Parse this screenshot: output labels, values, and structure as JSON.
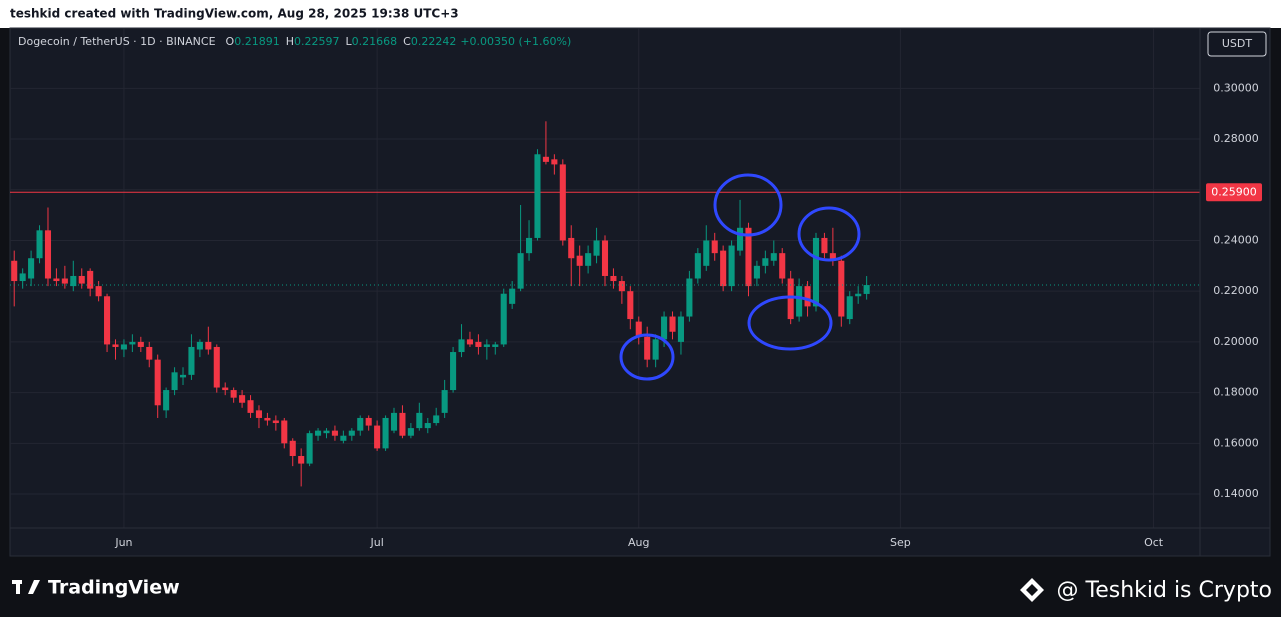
{
  "chart_data": {
    "type": "candlestick",
    "author_line": "teshkid created with TradingView.com, Aug 28, 2025 19:38 UTC+3",
    "title": "Dogecoin / TetherUS · 1D · BINANCE",
    "legend_values": [
      {
        "label": "O",
        "value": 0.21891
      },
      {
        "label": "H",
        "value": 0.22597
      },
      {
        "label": "L",
        "value": 0.21668
      },
      {
        "label": "C",
        "value": 0.22242
      }
    ],
    "change": "+0.00350 (+1.60%)",
    "currency": "USDT",
    "watermark": "TradingView",
    "credit": "@ Teshkid is Crypto",
    "up_color": "#089981",
    "down_color": "#f23645",
    "grid": true,
    "ylim": [
      0.1266,
      0.3238
    ],
    "yticks": [
      {
        "value": 0.14,
        "label": "0.14000"
      },
      {
        "value": 0.16,
        "label": "0.16000"
      },
      {
        "value": 0.18,
        "label": "0.18000"
      },
      {
        "value": 0.2,
        "label": "0.20000"
      },
      {
        "value": 0.22,
        "label": "0.22000"
      },
      {
        "value": 0.24,
        "label": "0.24000"
      },
      {
        "value": 0.26,
        "label": "0.26000"
      },
      {
        "value": 0.28,
        "label": "0.28000"
      },
      {
        "value": 0.3,
        "label": "0.30000"
      }
    ],
    "levels": [
      {
        "value": 0.259,
        "label": "0.25900",
        "color": "#f23645"
      }
    ],
    "categories": [
      null,
      null,
      null,
      null,
      null,
      null,
      null,
      null,
      null,
      null,
      null,
      null,
      null,
      "Jun",
      null,
      null,
      null,
      null,
      null,
      null,
      null,
      null,
      null,
      null,
      null,
      null,
      null,
      null,
      null,
      null,
      null,
      null,
      null,
      null,
      null,
      null,
      null,
      null,
      null,
      null,
      null,
      null,
      null,
      "Jul",
      null,
      null,
      null,
      null,
      null,
      null,
      null,
      null,
      null,
      null,
      null,
      null,
      null,
      null,
      null,
      null,
      null,
      null,
      null,
      null,
      null,
      null,
      null,
      null,
      null,
      null,
      null,
      null,
      null,
      null,
      "Aug",
      null,
      null,
      null,
      null,
      null,
      null,
      null,
      null,
      null,
      null,
      null,
      null,
      null,
      null,
      null,
      null,
      null,
      null,
      null,
      null,
      null,
      null,
      null,
      null,
      null,
      null,
      null,
      null,
      null,
      null,
      "Sep",
      null,
      null,
      null,
      null,
      null,
      null,
      null,
      null,
      null,
      null,
      null,
      null,
      null,
      null,
      null,
      null,
      null,
      null,
      null,
      null,
      null,
      null,
      null,
      null,
      null,
      null,
      null,
      null,
      null,
      "Oct",
      null,
      null,
      null,
      null,
      null
    ],
    "ohlc": {
      "open": [
        0.232,
        0.224,
        0.225,
        0.233,
        0.244,
        0.225,
        0.225,
        0.222,
        0.226,
        0.228,
        0.222,
        0.218,
        0.199,
        0.197,
        0.199,
        0.2,
        0.198,
        0.193,
        0.173,
        0.181,
        0.186,
        0.187,
        0.197,
        0.2,
        0.198,
        0.182,
        0.181,
        0.179,
        0.177,
        0.173,
        0.17,
        0.169,
        0.169,
        0.161,
        0.155,
        0.152,
        0.163,
        0.164,
        0.165,
        0.161,
        0.163,
        0.165,
        0.17,
        0.167,
        0.158,
        0.165,
        0.172,
        0.163,
        0.166,
        0.166,
        0.168,
        0.172,
        0.181,
        0.196,
        0.201,
        0.2,
        0.198,
        0.198,
        0.199,
        0.215,
        0.221,
        0.235,
        0.241,
        0.273,
        0.272,
        0.27,
        0.241,
        0.234,
        0.23,
        0.234,
        0.24,
        0.226,
        0.224,
        0.22,
        0.208,
        0.202,
        0.193,
        0.201,
        0.21,
        0.2,
        0.21,
        0.225,
        0.23,
        0.24,
        0.236,
        0.222,
        0.236,
        0.245,
        0.225,
        0.23,
        0.232,
        0.235,
        0.225,
        0.21,
        0.222,
        0.214,
        0.241,
        0.235,
        0.232,
        0.209,
        0.218,
        0.21891,
        null,
        null,
        null,
        null,
        null,
        null,
        null,
        null,
        null,
        null,
        null,
        null,
        null,
        null,
        null,
        null,
        null,
        null,
        null,
        null,
        null,
        null,
        null,
        null,
        null,
        null,
        null,
        null,
        null,
        null,
        null,
        null,
        null,
        null,
        null,
        null,
        null,
        null,
        null
      ],
      "high": [
        0.236,
        0.229,
        0.236,
        0.246,
        0.253,
        0.229,
        0.23,
        0.232,
        0.229,
        0.229,
        0.224,
        0.219,
        0.201,
        0.201,
        0.203,
        0.202,
        0.2,
        0.195,
        0.182,
        0.19,
        0.19,
        0.203,
        0.201,
        0.206,
        0.199,
        0.184,
        0.182,
        0.181,
        0.179,
        0.175,
        0.172,
        0.171,
        0.17,
        0.162,
        0.158,
        0.165,
        0.166,
        0.166,
        0.167,
        0.165,
        0.166,
        0.171,
        0.171,
        0.169,
        0.171,
        0.174,
        0.175,
        0.168,
        0.176,
        0.17,
        0.174,
        0.185,
        0.198,
        0.207,
        0.204,
        0.203,
        0.201,
        0.2,
        0.221,
        0.224,
        0.254,
        0.248,
        0.276,
        0.287,
        0.274,
        0.272,
        0.246,
        0.238,
        0.238,
        0.245,
        0.242,
        0.229,
        0.226,
        0.222,
        0.21,
        0.206,
        0.203,
        0.212,
        0.212,
        0.212,
        0.228,
        0.237,
        0.246,
        0.243,
        0.238,
        0.24,
        0.256,
        0.247,
        0.232,
        0.236,
        0.24,
        0.237,
        0.228,
        0.225,
        0.224,
        0.243,
        0.243,
        0.245,
        0.234,
        0.22,
        0.222,
        0.22597,
        null,
        null,
        null,
        null,
        null,
        null,
        null,
        null,
        null,
        null,
        null,
        null,
        null,
        null,
        null,
        null,
        null,
        null,
        null,
        null,
        null,
        null,
        null,
        null,
        null,
        null,
        null,
        null,
        null,
        null,
        null,
        null,
        null,
        null,
        null,
        null,
        null,
        null,
        null
      ],
      "low": [
        0.214,
        0.221,
        0.222,
        0.231,
        0.222,
        0.222,
        0.221,
        0.22,
        0.221,
        0.218,
        0.216,
        0.196,
        0.193,
        0.194,
        0.196,
        0.196,
        0.19,
        0.17,
        0.17,
        0.179,
        0.183,
        0.185,
        0.194,
        0.195,
        0.18,
        0.179,
        0.176,
        0.174,
        0.17,
        0.166,
        0.167,
        0.165,
        0.158,
        0.151,
        0.143,
        0.151,
        0.161,
        0.162,
        0.161,
        0.16,
        0.161,
        0.163,
        0.165,
        0.157,
        0.157,
        0.164,
        0.162,
        0.162,
        0.165,
        0.164,
        0.167,
        0.17,
        0.18,
        0.194,
        0.198,
        0.195,
        0.193,
        0.195,
        0.198,
        0.213,
        0.22,
        0.232,
        0.24,
        0.27,
        0.266,
        0.238,
        0.222,
        0.222,
        0.227,
        0.231,
        0.222,
        0.221,
        0.215,
        0.205,
        0.199,
        0.19,
        0.19,
        0.198,
        0.201,
        0.195,
        0.208,
        0.223,
        0.228,
        0.232,
        0.22,
        0.22,
        0.234,
        0.218,
        0.222,
        0.227,
        0.23,
        0.223,
        0.207,
        0.208,
        0.21,
        0.212,
        0.233,
        0.23,
        0.206,
        0.207,
        0.215,
        0.21668,
        null,
        null,
        null,
        null,
        null,
        null,
        null,
        null,
        null,
        null,
        null,
        null,
        null,
        null,
        null,
        null,
        null,
        null,
        null,
        null,
        null,
        null,
        null,
        null,
        null,
        null,
        null,
        null,
        null,
        null,
        null,
        null,
        null,
        null,
        null,
        null,
        null,
        null,
        null
      ],
      "close": [
        0.224,
        0.227,
        0.233,
        0.244,
        0.225,
        0.224,
        0.223,
        0.226,
        0.223,
        0.221,
        0.218,
        0.199,
        0.198,
        0.199,
        0.2,
        0.198,
        0.193,
        0.175,
        0.181,
        0.188,
        0.187,
        0.198,
        0.2,
        0.197,
        0.182,
        0.181,
        0.178,
        0.176,
        0.172,
        0.17,
        0.169,
        0.168,
        0.16,
        0.155,
        0.152,
        0.164,
        0.165,
        0.165,
        0.163,
        0.163,
        0.165,
        0.17,
        0.167,
        0.158,
        0.17,
        0.172,
        0.163,
        0.166,
        0.172,
        0.168,
        0.171,
        0.181,
        0.196,
        0.201,
        0.199,
        0.198,
        0.199,
        0.199,
        0.219,
        0.221,
        0.235,
        0.241,
        0.274,
        0.271,
        0.27,
        0.24,
        0.233,
        0.23,
        0.235,
        0.24,
        0.226,
        0.224,
        0.22,
        0.209,
        0.202,
        0.193,
        0.201,
        0.21,
        0.204,
        0.21,
        0.225,
        0.235,
        0.24,
        0.235,
        0.222,
        0.238,
        0.245,
        0.222,
        0.23,
        0.233,
        0.235,
        0.225,
        0.209,
        0.222,
        0.214,
        0.241,
        0.235,
        0.232,
        0.21,
        0.218,
        0.219,
        0.22242,
        null,
        null,
        null,
        null,
        null,
        null,
        null,
        null,
        null,
        null,
        null,
        null,
        null,
        null,
        null,
        null,
        null,
        null,
        null,
        null,
        null,
        null,
        null,
        null,
        null,
        null,
        null,
        null,
        null,
        null,
        null,
        null,
        null,
        null,
        null,
        null,
        null,
        null,
        null
      ]
    }
  }
}
